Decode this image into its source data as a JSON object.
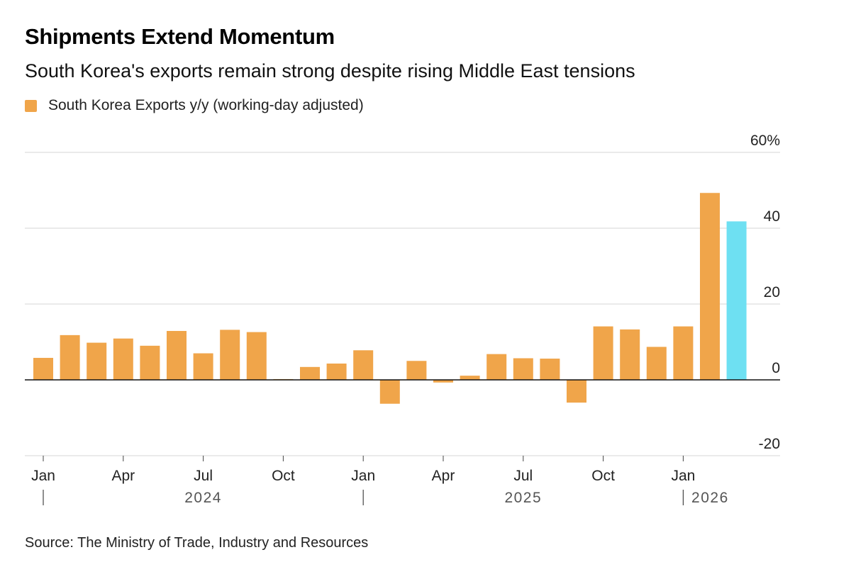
{
  "title": "Shipments Extend Momentum",
  "subtitle": "South Korea's exports remain strong despite rising Middle East tensions",
  "legend": {
    "label": "South Korea Exports y/y (working-day adjusted)",
    "color": "#F0A54A"
  },
  "source": "Source: The Ministry of Trade, Industry and Resources",
  "colors": {
    "bar": "#F0A54A",
    "highlight": "#6EE0F2",
    "grid": "#d4d4d4",
    "zero": "#111111",
    "text": "#222222",
    "year": "#555555"
  },
  "chart_data": {
    "type": "bar",
    "series": [
      {
        "name": "South Korea Exports y/y (working-day adjusted)",
        "categories": [
          "2024-01",
          "2024-02",
          "2024-03",
          "2024-04",
          "2024-05",
          "2024-06",
          "2024-07",
          "2024-08",
          "2024-09",
          "2024-10",
          "2024-11",
          "2024-12",
          "2025-01",
          "2025-02",
          "2025-03",
          "2025-04",
          "2025-05",
          "2025-06",
          "2025-07",
          "2025-08",
          "2025-09",
          "2025-10",
          "2025-11",
          "2025-12",
          "2026-01",
          "2026-02",
          "2026-03"
        ],
        "values": [
          5.8,
          11.8,
          9.8,
          10.9,
          9.0,
          12.9,
          7.0,
          13.2,
          12.6,
          0.2,
          3.4,
          4.3,
          7.8,
          -6.3,
          5.0,
          -0.7,
          1.1,
          6.8,
          5.7,
          5.6,
          -6.0,
          14.1,
          13.3,
          8.7,
          14.1,
          49.3,
          41.8
        ],
        "highlight_index": 26
      }
    ],
    "y_ticks": [
      {
        "value": 60,
        "label": "60%"
      },
      {
        "value": 40,
        "label": "40"
      },
      {
        "value": 20,
        "label": "20"
      },
      {
        "value": 0,
        "label": "0"
      },
      {
        "value": -20,
        "label": "-20"
      }
    ],
    "ylim": [
      -20,
      60
    ],
    "x_ticks": [
      {
        "index": 0,
        "label": "Jan"
      },
      {
        "index": 3,
        "label": "Apr"
      },
      {
        "index": 6,
        "label": "Jul"
      },
      {
        "index": 9,
        "label": "Oct"
      },
      {
        "index": 12,
        "label": "Jan"
      },
      {
        "index": 15,
        "label": "Apr"
      },
      {
        "index": 18,
        "label": "Jul"
      },
      {
        "index": 21,
        "label": "Oct"
      },
      {
        "index": 24,
        "label": "Jan"
      }
    ],
    "years": [
      {
        "label": "2024",
        "start_index": 0,
        "center_index": 6
      },
      {
        "label": "2025",
        "start_index": 12,
        "center_index": 18
      },
      {
        "label": "2026",
        "start_index": 24,
        "center_index": 25.5
      }
    ],
    "grid": true,
    "title": "Shipments Extend Momentum",
    "xlabel": "",
    "ylabel": ""
  }
}
